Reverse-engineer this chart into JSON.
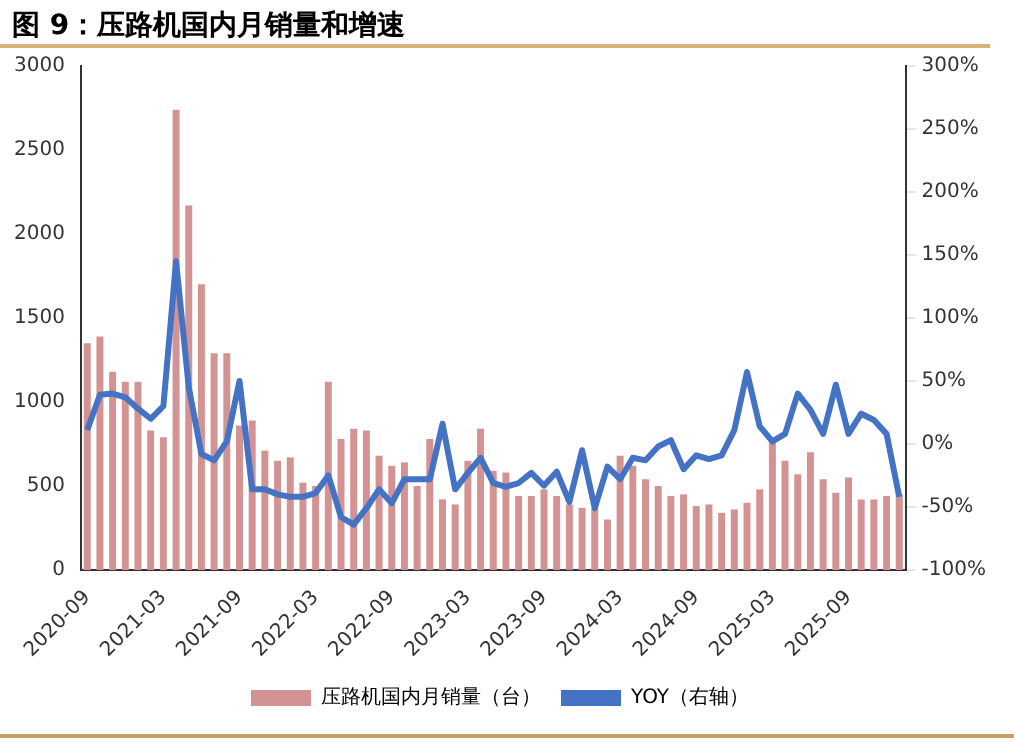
{
  "chart_data": {
    "type": "bar",
    "title": "图 9：压路机国内月销量和增速",
    "categories": [
      "2020-09",
      null,
      null,
      null,
      null,
      null,
      "2021-03",
      null,
      null,
      null,
      null,
      null,
      "2021-09",
      null,
      null,
      null,
      null,
      null,
      "2022-03",
      null,
      null,
      null,
      null,
      null,
      "2022-09",
      null,
      null,
      null,
      null,
      null,
      "2023-03",
      null,
      null,
      null,
      null,
      null,
      "2023-09",
      null,
      null,
      null,
      null,
      null,
      "2024-03",
      null,
      null,
      null,
      null,
      null,
      "2024-09",
      null,
      null,
      null,
      null,
      null,
      "2025-03",
      null,
      null,
      null,
      null,
      null,
      "2025-09",
      null,
      null,
      null,
      null
    ],
    "series": [
      {
        "name": "压路机国内月销量（台）",
        "color": "#d49393",
        "values": [
          1350,
          1390,
          1180,
          1120,
          1120,
          830,
          790,
          2740,
          2170,
          1700,
          1290,
          1290,
          860,
          890,
          710,
          650,
          670,
          520,
          500,
          1120,
          780,
          840,
          830,
          680,
          620,
          640,
          500,
          780,
          420,
          390,
          650,
          840,
          590,
          580,
          440,
          440,
          480,
          440,
          390,
          370,
          370,
          300,
          680,
          620,
          540,
          500,
          440,
          450,
          380,
          390,
          340,
          360,
          400,
          480,
          770,
          650,
          570,
          700,
          540,
          460,
          550,
          420,
          420,
          440,
          450
        ]
      },
      {
        "name": "YOY（右轴）",
        "type": "line",
        "axis": "y2",
        "color": "#4472c4",
        "values": [
          11,
          39,
          40,
          37,
          28,
          20,
          30,
          145,
          45,
          -8,
          -13,
          2,
          50,
          -36,
          -36,
          -40,
          -42,
          -42,
          -39,
          -25,
          -58,
          -64,
          -51,
          -36,
          -47,
          -28,
          -28,
          -28,
          16,
          -36,
          -23,
          -11,
          -31,
          -34,
          -31,
          -23,
          -33,
          -22,
          -46,
          -5,
          -51,
          -18,
          -28,
          -11,
          -13,
          -2,
          3,
          -20,
          -9,
          -12,
          -9,
          11,
          57,
          14,
          2,
          8,
          40,
          27,
          8,
          47,
          8,
          24,
          19,
          8,
          -42
        ]
      }
    ],
    "ylim": [
      0,
      3000
    ],
    "yticks": [
      0,
      500,
      1000,
      1500,
      2000,
      2500,
      3000
    ],
    "y2lim": [
      -100,
      300
    ],
    "y2ticks": [
      {
        "value": -100,
        "label": "-100%"
      },
      {
        "value": -50,
        "label": "-50%"
      },
      {
        "value": 0,
        "label": "0%"
      },
      {
        "value": 50,
        "label": "50%"
      },
      {
        "value": 100,
        "label": "100%"
      },
      {
        "value": 150,
        "label": "150%"
      },
      {
        "value": 200,
        "label": "200%"
      },
      {
        "value": 250,
        "label": "250%"
      },
      {
        "value": 300,
        "label": "300%"
      }
    ],
    "grid": false,
    "legend": "bottom",
    "marker": "none",
    "line_style": "solid"
  }
}
